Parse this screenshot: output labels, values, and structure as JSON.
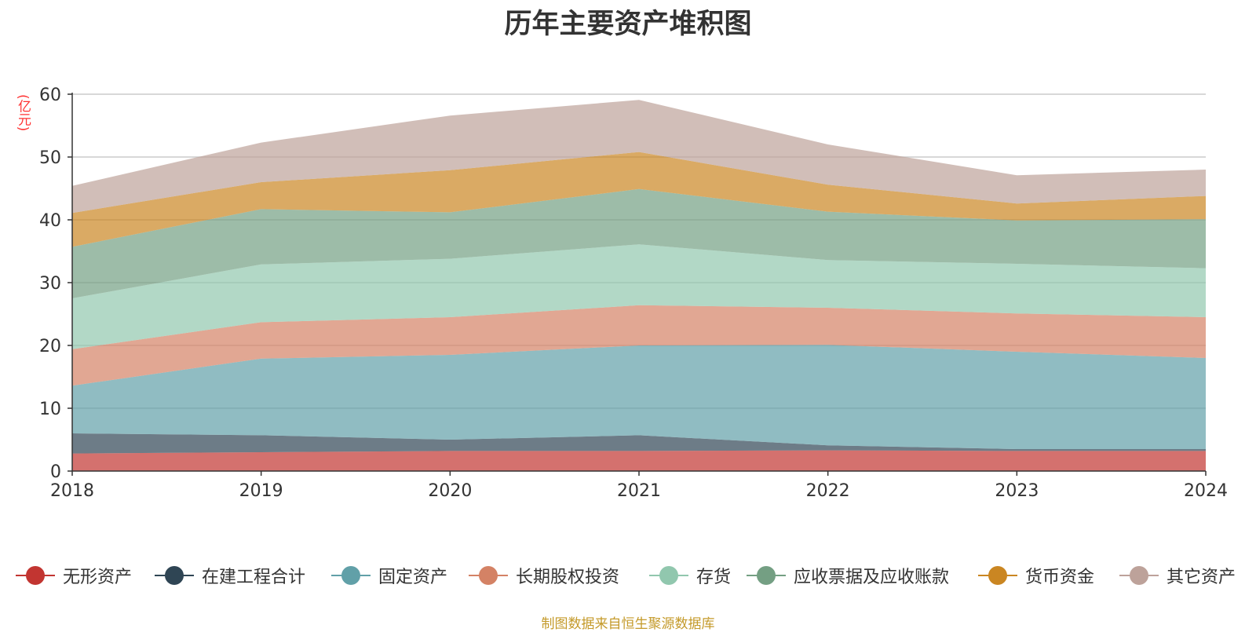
{
  "title": "历年主要资产堆积图",
  "footer": "制图数据来自恒生聚源数据库",
  "chart_data": {
    "type": "area",
    "stacked": true,
    "unit": "(亿元)",
    "x": [
      "2018",
      "2019",
      "2020",
      "2021",
      "2022",
      "2023",
      "2024"
    ],
    "ylim": [
      0,
      60
    ],
    "yticks": [
      0,
      10,
      20,
      30,
      40,
      50,
      60
    ],
    "grid": true,
    "legend_position": "bottom",
    "series": [
      {
        "name": "无形资产",
        "color": "#c23531",
        "values": [
          2.8,
          3.0,
          3.2,
          3.2,
          3.3,
          3.2,
          3.2
        ]
      },
      {
        "name": "在建工程合计",
        "color": "#2f4554",
        "values": [
          3.2,
          2.7,
          1.8,
          2.5,
          0.8,
          0.3,
          0.3
        ]
      },
      {
        "name": "固定资产",
        "color": "#61a0a8",
        "values": [
          7.6,
          12.2,
          13.5,
          14.3,
          16.0,
          15.5,
          14.5
        ]
      },
      {
        "name": "长期股权投资",
        "color": "#d48265",
        "values": [
          5.8,
          5.8,
          6.0,
          6.4,
          5.9,
          6.1,
          6.5
        ]
      },
      {
        "name": "存货",
        "color": "#91c7ae",
        "values": [
          8.1,
          9.2,
          9.3,
          9.7,
          7.6,
          7.9,
          7.8
        ]
      },
      {
        "name": "应收票据及应收账款",
        "color": "#749f83",
        "values": [
          8.2,
          8.8,
          7.4,
          8.8,
          7.7,
          6.9,
          7.8
        ]
      },
      {
        "name": "货币资金",
        "color": "#ca8622",
        "values": [
          5.4,
          4.3,
          6.7,
          5.9,
          4.3,
          2.7,
          3.7
        ]
      },
      {
        "name": "其它资产",
        "color": "#bda29a",
        "values": [
          4.3,
          6.3,
          8.7,
          8.3,
          6.4,
          4.5,
          4.2
        ]
      }
    ]
  }
}
